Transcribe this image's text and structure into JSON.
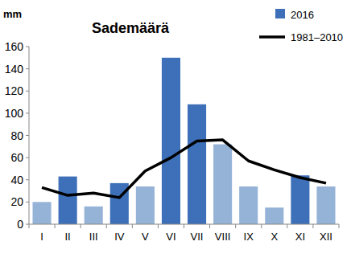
{
  "chart_data": {
    "type": "bar",
    "title": "Sademäärä",
    "y_label": "mm",
    "categories": [
      "I",
      "II",
      "III",
      "IV",
      "V",
      "VI",
      "VII",
      "VIII",
      "IX",
      "X",
      "XI",
      "XII"
    ],
    "series": [
      {
        "name": "2016",
        "type": "bar",
        "color": "#3d70b8",
        "colors": [
          "#95b3d7",
          "#3d70b8",
          "#95b3d7",
          "#3d70b8",
          "#95b3d7",
          "#3d70b8",
          "#3d70b8",
          "#95b3d7",
          "#95b3d7",
          "#95b3d7",
          "#3d70b8",
          "#95b3d7"
        ],
        "values": [
          20,
          43,
          16,
          37,
          34,
          150,
          108,
          72,
          34,
          15,
          44,
          34
        ]
      },
      {
        "name": "1981–2010",
        "type": "line",
        "color": "#000000",
        "values": [
          33,
          26,
          28,
          24,
          48,
          60,
          75,
          76,
          57,
          49,
          42,
          37
        ]
      }
    ],
    "ylim": [
      0,
      160
    ],
    "yticks": [
      0,
      20,
      40,
      60,
      80,
      100,
      120,
      140,
      160
    ],
    "grid": false,
    "legend": "top-right"
  }
}
